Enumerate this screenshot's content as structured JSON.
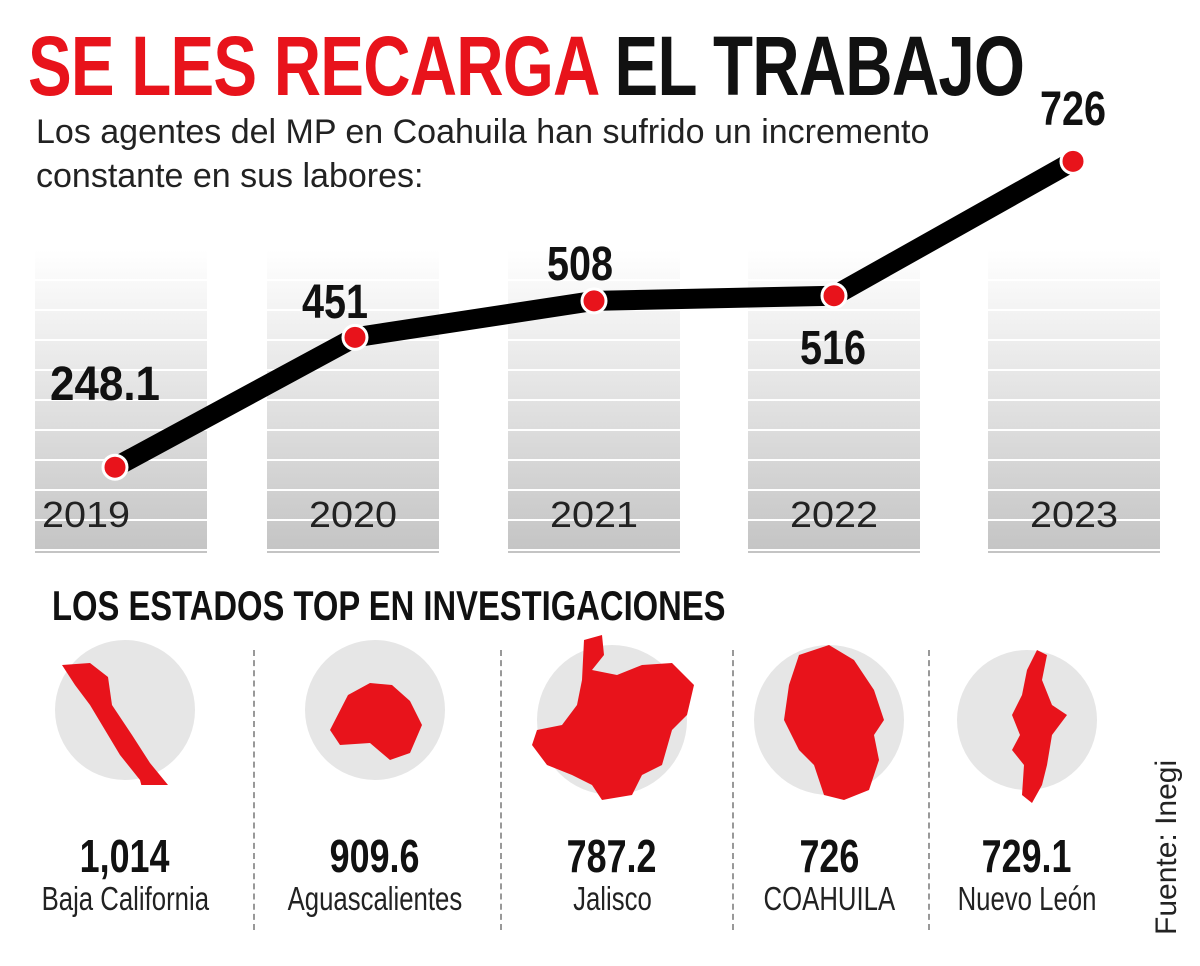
{
  "title": {
    "red_part": "SE LES RECARGA",
    "black_part": "EL TRABAJO"
  },
  "subtitle": "Los agentes del MP en Coahuila han sufrido un incremento constante en sus labores:",
  "chart_data": {
    "type": "line",
    "categories": [
      "2019",
      "2020",
      "2021",
      "2022",
      "2023"
    ],
    "values": [
      248.1,
      451,
      508,
      516,
      726
    ],
    "data_labels": [
      "248.1",
      "451",
      "508",
      "516",
      "726"
    ],
    "colors": {
      "line": "#000000",
      "marker": "#e8131b",
      "column_bg": "#d0d0d0"
    }
  },
  "states_section": {
    "heading": "LOS ESTADOS TOP EN INVESTIGACIONES",
    "states": [
      {
        "value": "1,014",
        "name": "Baja California"
      },
      {
        "value": "909.6",
        "name": "Aguascalientes"
      },
      {
        "value": "787.2",
        "name": "Jalisco"
      },
      {
        "value": "726",
        "name": "COAHUILA"
      },
      {
        "value": "729.1",
        "name": "Nuevo León"
      }
    ]
  },
  "source": "Fuente: Inegi",
  "colors": {
    "accent": "#e8131b",
    "circle": "#e6e6e6"
  }
}
